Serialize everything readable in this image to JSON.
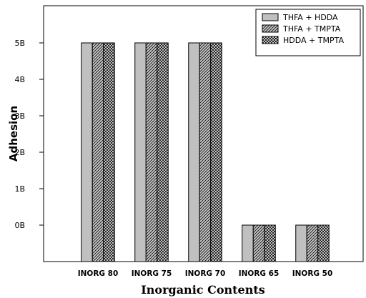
{
  "chart_data": {
    "type": "bar",
    "xlabel": "Inorganic Contents",
    "ylabel": "Adhesion",
    "categories": [
      "INORG 80",
      "INORG 75",
      "INORG 70",
      "INORG 65",
      "INORG 50"
    ],
    "y_ticks": [
      {
        "label": "0B",
        "value": 0
      },
      {
        "label": "1B",
        "value": 1
      },
      {
        "label": "2B",
        "value": 2
      },
      {
        "label": "3B",
        "value": 3
      },
      {
        "label": "4B",
        "value": 4
      },
      {
        "label": "5B",
        "value": 5
      }
    ],
    "ylim": [
      -1,
      6
    ],
    "grid": false,
    "legend_position": "top-right",
    "series": [
      {
        "name": "THFA + HDDA",
        "pattern": "solid-gray",
        "color": "#c0c0c0",
        "values": [
          5,
          5,
          5,
          0,
          0
        ]
      },
      {
        "name": "THFA + TMPTA",
        "pattern": "diagonal-hatch",
        "color": "#c0c0c0",
        "values": [
          5,
          5,
          5,
          0,
          0
        ]
      },
      {
        "name": "HDDA + TMPTA",
        "pattern": "crosshatch",
        "color": "#c0c0c0",
        "values": [
          5,
          5,
          5,
          0,
          0
        ]
      }
    ]
  }
}
